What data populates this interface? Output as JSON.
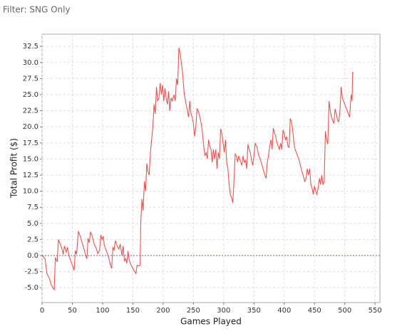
{
  "header": {
    "filter": "Filter: SNG Only"
  },
  "chart_data": {
    "type": "line",
    "x_label": "Games Played",
    "y_label": "Total Profit ($)",
    "color": "#f05050",
    "grid": true,
    "xlim": [
      0,
      558
    ],
    "ylim": [
      -7.3,
      34.4
    ],
    "xticks": [
      0,
      50,
      100,
      150,
      200,
      250,
      300,
      350,
      400,
      450,
      500,
      550
    ],
    "yticks": [
      {
        "value": -5,
        "label": "-5.0"
      },
      {
        "value": -2.5,
        "label": "-2.5"
      },
      {
        "value": 0,
        "label": "0.0"
      },
      {
        "value": 2.5,
        "label": "2.5"
      },
      {
        "value": 5,
        "label": "5.0"
      },
      {
        "value": 7.5,
        "label": "7.5"
      },
      {
        "value": 10,
        "label": "10.0"
      },
      {
        "value": 12.5,
        "label": "12.5"
      },
      {
        "value": 15,
        "label": "15.0"
      },
      {
        "value": 17.5,
        "label": "17.5"
      },
      {
        "value": 20,
        "label": "20.0"
      },
      {
        "value": 22.5,
        "label": "22.5"
      },
      {
        "value": 25,
        "label": "25.0"
      },
      {
        "value": 27.5,
        "label": "27.5"
      },
      {
        "value": 30,
        "label": "30.0"
      },
      {
        "value": 32.5,
        "label": "32.5"
      }
    ],
    "x": [
      0,
      5,
      8,
      12,
      15,
      18,
      20,
      22,
      25,
      27,
      30,
      33,
      35,
      37,
      40,
      42,
      45,
      50,
      53,
      55,
      57,
      60,
      63,
      66,
      70,
      72,
      74,
      76,
      78,
      80,
      83,
      86,
      90,
      92,
      95,
      97,
      99,
      101,
      103,
      106,
      110,
      113,
      115,
      117,
      119,
      121,
      124,
      127,
      129,
      132,
      134,
      136,
      138,
      140,
      142,
      144,
      147,
      150,
      153,
      155,
      157,
      160,
      162,
      163,
      165,
      167,
      169,
      171,
      173,
      175,
      177,
      179,
      181,
      183,
      185,
      187,
      189,
      191,
      193,
      195,
      197,
      199,
      201,
      203,
      205,
      207,
      209,
      211,
      213,
      215,
      218,
      220,
      222,
      224,
      226,
      228,
      230,
      232,
      235,
      238,
      240,
      242,
      244,
      246,
      248,
      250,
      252,
      254,
      256,
      258,
      260,
      263,
      265,
      267,
      269,
      271,
      273,
      275,
      277,
      279,
      281,
      283,
      285,
      287,
      289,
      291,
      293,
      295,
      297,
      299,
      301,
      303,
      305,
      307,
      309,
      311,
      313,
      315,
      317,
      319,
      321,
      323,
      325,
      327,
      330,
      332,
      334,
      336,
      338,
      340,
      342,
      344,
      346,
      348,
      350,
      352,
      355,
      358,
      362,
      365,
      368,
      370,
      372,
      374,
      376,
      378,
      380,
      382,
      384,
      386,
      388,
      390,
      392,
      394,
      396,
      398,
      400,
      402,
      404,
      406,
      408,
      410,
      412,
      414,
      416,
      418,
      420,
      424,
      428,
      431,
      434,
      436,
      438,
      440,
      442,
      444,
      446,
      448,
      450,
      452,
      454,
      456,
      458,
      460,
      462,
      464,
      466,
      468,
      470,
      472,
      474,
      476,
      478,
      480,
      482,
      484,
      486,
      488,
      490,
      492,
      494,
      496,
      498,
      500,
      502,
      504,
      506,
      508,
      510,
      511,
      512,
      513,
      514
    ],
    "values": [
      0,
      -0.5,
      -2.8,
      -3.5,
      -4.5,
      -5.0,
      -5.3,
      -0.3,
      -1.0,
      2.5,
      1.8,
      1.0,
      0.2,
      1.5,
      0.5,
      1.3,
      -0.2,
      -1.5,
      -2.3,
      0.8,
      0.2,
      3.8,
      3.0,
      2.0,
      0.8,
      0.0,
      -0.5,
      2.7,
      2.0,
      3.7,
      3.0,
      1.8,
      1.0,
      0.3,
      0.8,
      3.2,
      2.5,
      3.0,
      1.5,
      0.8,
      -0.3,
      -1.5,
      -2.0,
      1.3,
      0.8,
      2.3,
      1.5,
      1.0,
      1.8,
      0.0,
      1.5,
      -0.8,
      -0.5,
      -1.2,
      0.7,
      -0.7,
      -1.5,
      -2.0,
      -2.5,
      -2.8,
      -1.5,
      -1.6,
      -1.5,
      5.0,
      8.8,
      7.0,
      11.5,
      10.0,
      14.3,
      13.0,
      12.5,
      16.0,
      18.0,
      20.0,
      23.5,
      22.0,
      26.2,
      24.0,
      24.5,
      26.8,
      25.0,
      26.5,
      24.0,
      26.0,
      24.5,
      23.5,
      25.5,
      22.5,
      24.5,
      24.0,
      25.0,
      24.0,
      27.5,
      26.5,
      32.3,
      31.5,
      30.0,
      28.5,
      25.0,
      23.5,
      22.5,
      21.5,
      24.0,
      22.0,
      21.5,
      20.5,
      18.5,
      20.0,
      22.8,
      22.5,
      21.8,
      20.5,
      19.0,
      17.0,
      15.5,
      16.0,
      15.0,
      18.0,
      17.0,
      16.5,
      14.5,
      16.5,
      15.0,
      16.5,
      13.5,
      16.0,
      15.0,
      19.7,
      19.0,
      17.5,
      16.0,
      18.0,
      14.5,
      13.5,
      11.0,
      9.5,
      9.0,
      8.2,
      11.5,
      15.8,
      15.5,
      14.5,
      15.5,
      14.8,
      14.0,
      15.5,
      14.5,
      14.8,
      13.5,
      17.3,
      16.5,
      16.0,
      14.8,
      14.0,
      15.5,
      17.5,
      16.8,
      15.5,
      14.5,
      13.5,
      12.5,
      12.0,
      14.5,
      15.5,
      17.0,
      18.0,
      16.5,
      19.8,
      19.0,
      18.5,
      17.5,
      17.0,
      16.5,
      17.5,
      16.5,
      19.5,
      19.0,
      18.0,
      18.5,
      17.0,
      16.8,
      21.3,
      20.8,
      19.5,
      17.5,
      16.5,
      16.0,
      15.0,
      13.5,
      12.5,
      11.5,
      12.0,
      13.5,
      12.5,
      13.5,
      11.0,
      10.5,
      9.5,
      10.8,
      10.0,
      9.5,
      10.5,
      12.0,
      11.0,
      12.5,
      11.0,
      11.5,
      19.3,
      18.0,
      17.3,
      24.0,
      22.5,
      21.5,
      21.0,
      20.5,
      22.8,
      22.0,
      21.0,
      20.8,
      22.5,
      26.2,
      24.5,
      24.0,
      23.5,
      23.0,
      22.5,
      22.0,
      21.5,
      24.5,
      25.0,
      24.0,
      28.5,
      28.3
    ]
  }
}
